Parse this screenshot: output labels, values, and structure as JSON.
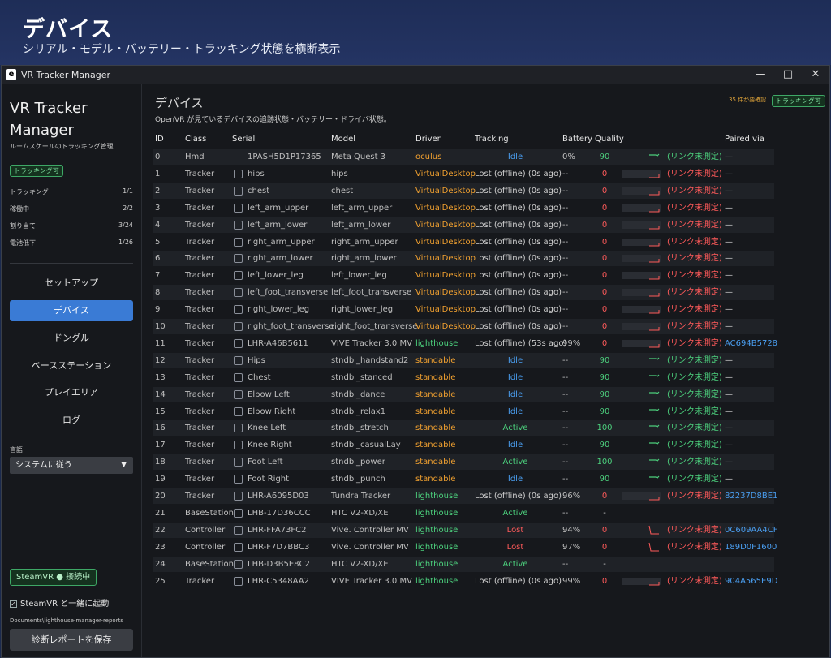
{
  "banner": {
    "title": "デバイス",
    "subtitle": "シリアル・モデル・バッテリー・トラッキング状態を横断表示"
  },
  "window": {
    "title": "VR Tracker Manager",
    "app_icon_letter": "e"
  },
  "sidebar": {
    "app_title": "VR Tracker Manager",
    "app_subtitle": "ルームスケールのトラッキング管理",
    "status_badge": "トラッキング可",
    "stats": [
      {
        "label": "トラッキング",
        "value": "1/1"
      },
      {
        "label": "稼働中",
        "value": "2/2"
      },
      {
        "label": "割り当て",
        "value": "3/24"
      },
      {
        "label": "電池低下",
        "value": "1/26"
      }
    ],
    "nav": [
      "セットアップ",
      "デバイス",
      "ドングル",
      "ベースステーション",
      "プレイエリア",
      "ログ"
    ],
    "active_nav": 1,
    "language_label": "言語",
    "language_value": "システムに従う",
    "steamvr_button": "SteamVR ● 接続中",
    "autostart_label": "SteamVR と一緒に起動",
    "report_path": "Documents\\lighthouse-manager-reports",
    "save_button": "診断レポートを保存"
  },
  "main": {
    "title": "デバイス",
    "subtitle": "OpenVR が見ているデバイスの追跡状態・バッテリー・ドライバ状態。",
    "warning": "35 件が要確認",
    "status_badge": "トラッキング可",
    "columns": [
      "ID",
      "Class",
      "Serial",
      "Model",
      "Driver",
      "Tracking",
      "Battery",
      "Quality",
      "Paired via"
    ],
    "rows": [
      {
        "id": "0",
        "cls": "Hmd",
        "serial": "1PASH5D1P17365",
        "model": "Meta Quest 3",
        "driver": "oculus",
        "tracking": "Idle",
        "batt": "0%",
        "qual": "90",
        "link": "(リンク未測定)",
        "pair": "—",
        "cb": false,
        "spark": "ok"
      },
      {
        "id": "1",
        "cls": "Tracker",
        "serial": "hips",
        "model": "hips",
        "driver": "VirtualDesktop",
        "tracking": "Lost (offline)  (0s ago)",
        "batt": "--",
        "qual": "0",
        "link": "(リンク未測定)",
        "pair": "—",
        "cb": true,
        "spark": "lost"
      },
      {
        "id": "2",
        "cls": "Tracker",
        "serial": "chest",
        "model": "chest",
        "driver": "VirtualDesktop",
        "tracking": "Lost (offline)  (0s ago)",
        "batt": "--",
        "qual": "0",
        "link": "(リンク未測定)",
        "pair": "—",
        "cb": true,
        "spark": "lost"
      },
      {
        "id": "3",
        "cls": "Tracker",
        "serial": "left_arm_upper",
        "model": "left_arm_upper",
        "driver": "VirtualDesktop",
        "tracking": "Lost (offline)  (0s ago)",
        "batt": "--",
        "qual": "0",
        "link": "(リンク未測定)",
        "pair": "—",
        "cb": true,
        "spark": "lost"
      },
      {
        "id": "4",
        "cls": "Tracker",
        "serial": "left_arm_lower",
        "model": "left_arm_lower",
        "driver": "VirtualDesktop",
        "tracking": "Lost (offline)  (0s ago)",
        "batt": "--",
        "qual": "0",
        "link": "(リンク未測定)",
        "pair": "—",
        "cb": true,
        "spark": "lost"
      },
      {
        "id": "5",
        "cls": "Tracker",
        "serial": "right_arm_upper",
        "model": "right_arm_upper",
        "driver": "VirtualDesktop",
        "tracking": "Lost (offline)  (0s ago)",
        "batt": "--",
        "qual": "0",
        "link": "(リンク未測定)",
        "pair": "—",
        "cb": true,
        "spark": "lost"
      },
      {
        "id": "6",
        "cls": "Tracker",
        "serial": "right_arm_lower",
        "model": "right_arm_lower",
        "driver": "VirtualDesktop",
        "tracking": "Lost (offline)  (0s ago)",
        "batt": "--",
        "qual": "0",
        "link": "(リンク未測定)",
        "pair": "—",
        "cb": true,
        "spark": "lost"
      },
      {
        "id": "7",
        "cls": "Tracker",
        "serial": "left_lower_leg",
        "model": "left_lower_leg",
        "driver": "VirtualDesktop",
        "tracking": "Lost (offline)  (0s ago)",
        "batt": "--",
        "qual": "0",
        "link": "(リンク未測定)",
        "pair": "—",
        "cb": true,
        "spark": "lost"
      },
      {
        "id": "8",
        "cls": "Tracker",
        "serial": "left_foot_transverse",
        "model": "left_foot_transverse",
        "driver": "VirtualDesktop",
        "tracking": "Lost (offline)  (0s ago)",
        "batt": "--",
        "qual": "0",
        "link": "(リンク未測定)",
        "pair": "—",
        "cb": true,
        "spark": "lost"
      },
      {
        "id": "9",
        "cls": "Tracker",
        "serial": "right_lower_leg",
        "model": "right_lower_leg",
        "driver": "VirtualDesktop",
        "tracking": "Lost (offline)  (0s ago)",
        "batt": "--",
        "qual": "0",
        "link": "(リンク未測定)",
        "pair": "—",
        "cb": true,
        "spark": "lost"
      },
      {
        "id": "10",
        "cls": "Tracker",
        "serial": "right_foot_transverse",
        "model": "right_foot_transverse",
        "driver": "VirtualDesktop",
        "tracking": "Lost (offline)  (0s ago)",
        "batt": "--",
        "qual": "0",
        "link": "(リンク未測定)",
        "pair": "—",
        "cb": true,
        "spark": "lost"
      },
      {
        "id": "11",
        "cls": "Tracker",
        "serial": "LHR-A46B5611",
        "model": "VIVE Tracker 3.0 MV",
        "driver": "lighthouse",
        "tracking": "Lost (offline)  (53s ago)",
        "batt": "99%",
        "qual": "0",
        "link": "(リンク未測定)",
        "pair": "AC694B5728",
        "cb": true,
        "spark": "lost"
      },
      {
        "id": "12",
        "cls": "Tracker",
        "serial": "Hips",
        "model": "stndbl_handstand2",
        "driver": "standable",
        "tracking": "Idle",
        "batt": "--",
        "qual": "90",
        "link": "(リンク未測定)",
        "pair": "—",
        "cb": true,
        "spark": "ok"
      },
      {
        "id": "13",
        "cls": "Tracker",
        "serial": "Chest",
        "model": "stndbl_stanced",
        "driver": "standable",
        "tracking": "Idle",
        "batt": "--",
        "qual": "90",
        "link": "(リンク未測定)",
        "pair": "—",
        "cb": true,
        "spark": "ok"
      },
      {
        "id": "14",
        "cls": "Tracker",
        "serial": "Elbow Left",
        "model": "stndbl_dance",
        "driver": "standable",
        "tracking": "Idle",
        "batt": "--",
        "qual": "90",
        "link": "(リンク未測定)",
        "pair": "—",
        "cb": true,
        "spark": "ok"
      },
      {
        "id": "15",
        "cls": "Tracker",
        "serial": "Elbow Right",
        "model": "stndbl_relax1",
        "driver": "standable",
        "tracking": "Idle",
        "batt": "--",
        "qual": "90",
        "link": "(リンク未測定)",
        "pair": "—",
        "cb": true,
        "spark": "ok"
      },
      {
        "id": "16",
        "cls": "Tracker",
        "serial": "Knee Left",
        "model": "stndbl_stretch",
        "driver": "standable",
        "tracking": "Active",
        "batt": "--",
        "qual": "100",
        "link": "(リンク未測定)",
        "pair": "—",
        "cb": true,
        "spark": "ok"
      },
      {
        "id": "17",
        "cls": "Tracker",
        "serial": "Knee Right",
        "model": "stndbl_casualLay",
        "driver": "standable",
        "tracking": "Idle",
        "batt": "--",
        "qual": "90",
        "link": "(リンク未測定)",
        "pair": "—",
        "cb": true,
        "spark": "ok"
      },
      {
        "id": "18",
        "cls": "Tracker",
        "serial": "Foot Left",
        "model": "stndbl_power",
        "driver": "standable",
        "tracking": "Active",
        "batt": "--",
        "qual": "100",
        "link": "(リンク未測定)",
        "pair": "—",
        "cb": true,
        "spark": "ok"
      },
      {
        "id": "19",
        "cls": "Tracker",
        "serial": "Foot Right",
        "model": "stndbl_punch",
        "driver": "standable",
        "tracking": "Idle",
        "batt": "--",
        "qual": "90",
        "link": "(リンク未測定)",
        "pair": "—",
        "cb": true,
        "spark": "ok"
      },
      {
        "id": "20",
        "cls": "Tracker",
        "serial": "LHR-A6095D03",
        "model": "Tundra Tracker",
        "driver": "lighthouse",
        "tracking": "Lost (offline)  (0s ago)",
        "batt": "96%",
        "qual": "0",
        "link": "(リンク未測定)",
        "pair": "82237D8BE1",
        "cb": true,
        "spark": "lost"
      },
      {
        "id": "21",
        "cls": "BaseStation",
        "serial": "LHB-17D36CCC",
        "model": "HTC V2-XD/XE",
        "driver": "lighthouse",
        "tracking": "Active",
        "batt": "--",
        "qual": "-",
        "link": "",
        "pair": "",
        "cb": true,
        "spark": "none"
      },
      {
        "id": "22",
        "cls": "Controller",
        "serial": "LHR-FFA73FC2",
        "model": "Vive. Controller MV",
        "driver": "lighthouse",
        "tracking": "Lost",
        "batt": "94%",
        "qual": "0",
        "link": "(リンク未測定)",
        "pair": "0C609AA4CF",
        "cb": true,
        "spark": "drop"
      },
      {
        "id": "23",
        "cls": "Controller",
        "serial": "LHR-F7D7BBC3",
        "model": "Vive. Controller MV",
        "driver": "lighthouse",
        "tracking": "Lost",
        "batt": "97%",
        "qual": "0",
        "link": "(リンク未測定)",
        "pair": "189D0F1600",
        "cb": true,
        "spark": "drop"
      },
      {
        "id": "24",
        "cls": "BaseStation",
        "serial": "LHB-D3B5E8C2",
        "model": "HTC V2-XD/XE",
        "driver": "lighthouse",
        "tracking": "Active",
        "batt": "--",
        "qual": "-",
        "link": "",
        "pair": "",
        "cb": true,
        "spark": "none"
      },
      {
        "id": "25",
        "cls": "Tracker",
        "serial": "LHR-C5348AA2",
        "model": "VIVE Tracker 3.0 MV",
        "driver": "lighthouse",
        "tracking": "Lost (offline)  (0s ago)",
        "batt": "99%",
        "qual": "0",
        "link": "(リンク未測定)",
        "pair": "904A565E9D",
        "cb": true,
        "spark": "lost"
      }
    ]
  },
  "colors": {
    "accent": "#3a7bd5",
    "ok": "#4cd07d",
    "lost": "#ff5a5a",
    "driver": "#f0a030",
    "pair": "#4a9ef0",
    "idle": "#4a9ef0",
    "active": "#4cd07d"
  }
}
